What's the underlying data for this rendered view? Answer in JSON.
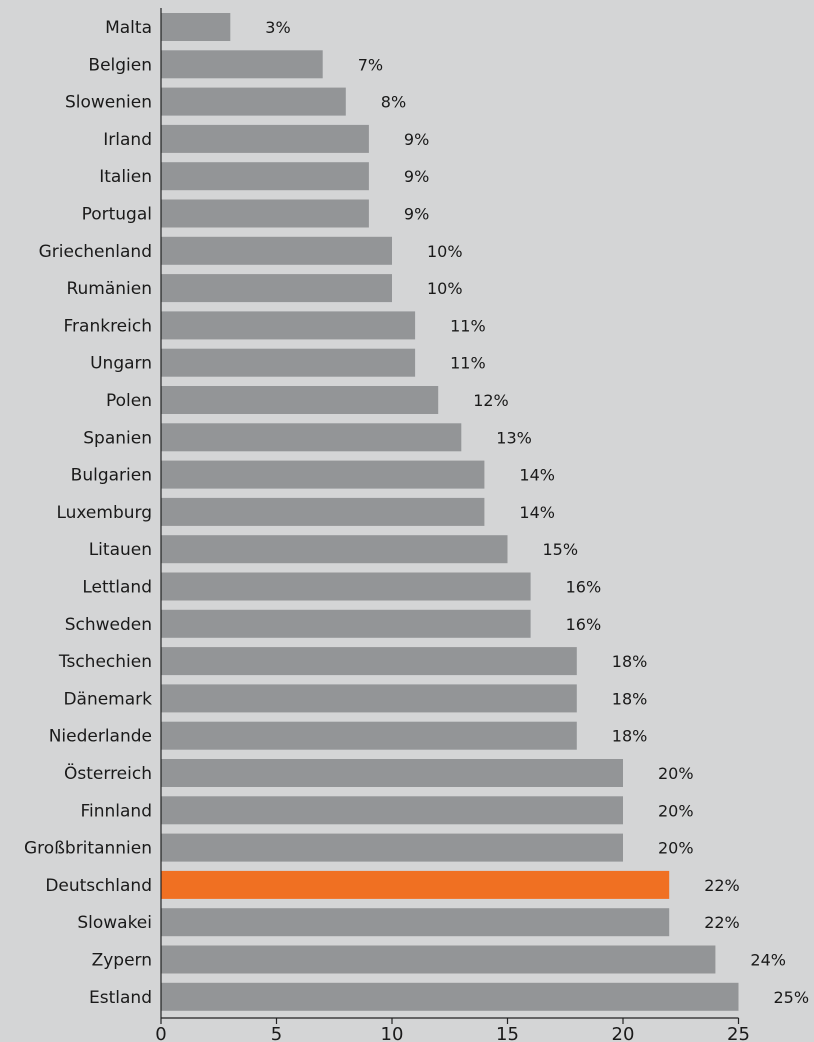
{
  "chart_data": {
    "type": "bar",
    "orientation": "horizontal",
    "categories": [
      "Malta",
      "Belgien",
      "Slowenien",
      "Irland",
      "Italien",
      "Portugal",
      "Griechenland",
      "Rumänien",
      "Frankreich",
      "Ungarn",
      "Polen",
      "Spanien",
      "Bulgarien",
      "Luxemburg",
      "Litauen",
      "Lettland",
      "Schweden",
      "Tschechien",
      "Dänemark",
      "Niederlande",
      "Österreich",
      "Finnland",
      "Großbritannien",
      "Deutschland",
      "Slowakei",
      "Zypern",
      "Estland"
    ],
    "values": [
      3,
      7,
      8,
      9,
      9,
      9,
      10,
      10,
      11,
      11,
      12,
      13,
      14,
      14,
      15,
      16,
      16,
      18,
      18,
      18,
      20,
      20,
      20,
      22,
      22,
      24,
      25
    ],
    "value_labels": [
      "3%",
      "7%",
      "8%",
      "9%",
      "9%",
      "9%",
      "10%",
      "10%",
      "11%",
      "11%",
      "12%",
      "13%",
      "14%",
      "14%",
      "15%",
      "16%",
      "16%",
      "18%",
      "18%",
      "18%",
      "20%",
      "20%",
      "20%",
      "22%",
      "22%",
      "24%",
      "25%"
    ],
    "highlight": "Deutschland",
    "xlim": [
      0,
      25
    ],
    "xticks": [
      "0",
      "5",
      "10",
      "15",
      "20",
      "25"
    ],
    "title": "",
    "xlabel": "",
    "ylabel": "",
    "grid": false,
    "colors": {
      "bar": "#939597",
      "highlight": "#f07022",
      "background": "#d4d5d6",
      "axis": "#222222"
    }
  }
}
